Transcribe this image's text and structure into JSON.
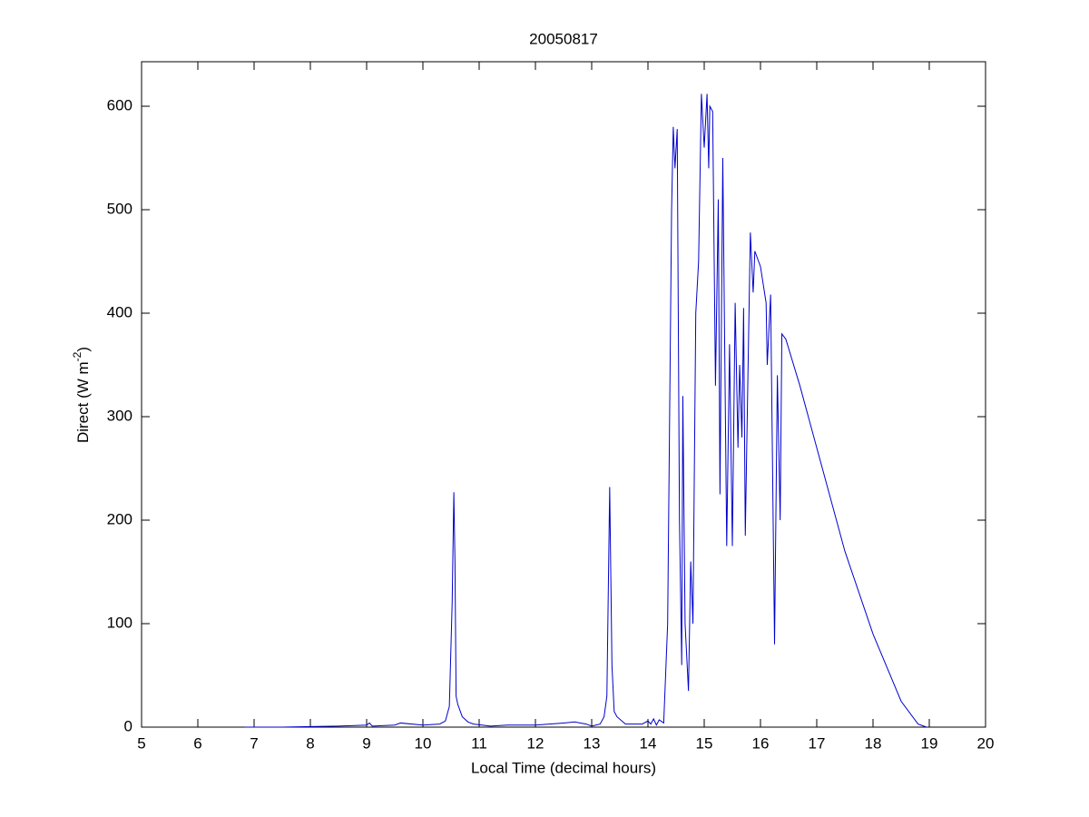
{
  "chart_data": {
    "type": "line",
    "title": "20050817",
    "xlabel": "Local Time (decimal hours)",
    "ylabel": [
      "Direct (W m",
      "-2",
      ")"
    ],
    "xlim": [
      5,
      20
    ],
    "xticks": [
      5,
      6,
      7,
      8,
      9,
      10,
      11,
      12,
      13,
      14,
      15,
      16,
      17,
      18,
      19,
      20
    ],
    "ylim": [
      0,
      643
    ],
    "yticks": [
      0,
      100,
      200,
      300,
      400,
      500,
      600
    ],
    "series": [
      {
        "color": "#0000cc",
        "x": [
          6.83,
          7.5,
          8.0,
          8.5,
          9.0,
          9.05,
          9.1,
          9.5,
          9.6,
          10.0,
          10.3,
          10.4,
          10.47,
          10.52,
          10.55,
          10.57,
          10.59,
          10.62,
          10.7,
          10.8,
          10.9,
          11.2,
          11.5,
          12.0,
          12.5,
          12.7,
          12.9,
          13.0,
          13.15,
          13.22,
          13.27,
          13.32,
          13.36,
          13.4,
          13.45,
          13.6,
          13.9,
          14.0,
          14.05,
          14.1,
          14.15,
          14.2,
          14.28,
          14.35,
          14.42,
          14.45,
          14.48,
          14.52,
          14.56,
          14.6,
          14.62,
          14.66,
          14.72,
          14.76,
          14.8,
          14.85,
          14.9,
          14.95,
          15.0,
          15.05,
          15.08,
          15.1,
          15.15,
          15.2,
          15.25,
          15.28,
          15.33,
          15.4,
          15.45,
          15.5,
          15.55,
          15.6,
          15.63,
          15.67,
          15.7,
          15.73,
          15.78,
          15.82,
          15.87,
          15.9,
          16.0,
          16.1,
          16.12,
          16.18,
          16.25,
          16.3,
          16.35,
          16.38,
          16.45,
          16.7,
          17.0,
          17.5,
          18.0,
          18.5,
          18.8,
          18.95
        ],
        "values": [
          0,
          0,
          0.5,
          1,
          2,
          4,
          1,
          2,
          4,
          2,
          3,
          6,
          20,
          120,
          227,
          160,
          30,
          22,
          10,
          5,
          3,
          1,
          2,
          2,
          4,
          5,
          3,
          1,
          3,
          10,
          30,
          232,
          60,
          15,
          10,
          3,
          3,
          6,
          3,
          8,
          2,
          7,
          4,
          100,
          500,
          580,
          540,
          578,
          200,
          60,
          320,
          100,
          35,
          160,
          100,
          400,
          450,
          612,
          560,
          612,
          540,
          600,
          595,
          330,
          510,
          225,
          550,
          175,
          370,
          175,
          410,
          270,
          350,
          280,
          405,
          185,
          350,
          478,
          420,
          460,
          445,
          410,
          350,
          418,
          80,
          340,
          200,
          380,
          375,
          330,
          270,
          170,
          90,
          25,
          3,
          0
        ]
      }
    ]
  }
}
